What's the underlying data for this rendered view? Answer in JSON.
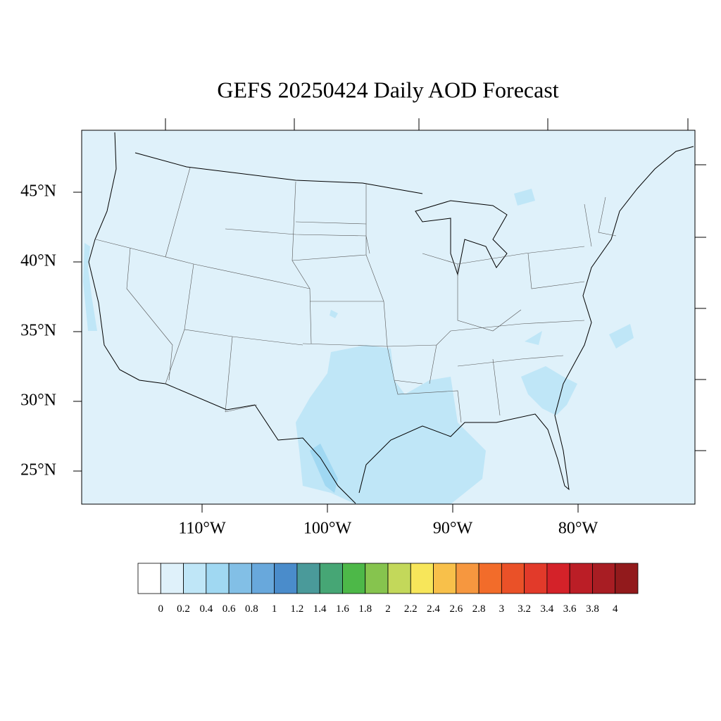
{
  "title": "GEFS 20250424 Daily AOD Forecast",
  "lat_labels": [
    "45°N",
    "40°N",
    "35°N",
    "30°N",
    "25°N"
  ],
  "lon_labels": [
    "110°W",
    "100°W",
    "90°W",
    "80°W"
  ],
  "colorbar": {
    "levels": [
      0,
      0.2,
      0.4,
      0.6,
      0.8,
      1,
      1.2,
      1.4,
      1.6,
      1.8,
      2,
      2.2,
      2.4,
      2.6,
      2.8,
      3,
      3.2,
      3.4,
      3.6,
      3.8,
      4
    ],
    "colors": [
      "#ffffff",
      "#dff1fa",
      "#bfe6f7",
      "#a0d8f2",
      "#82bfe6",
      "#68a8dc",
      "#4a8ccb",
      "#4a9a9a",
      "#46a675",
      "#4db848",
      "#86c44e",
      "#c3d85a",
      "#f7e65a",
      "#f8c04a",
      "#f6973f",
      "#f26c2a",
      "#ea5128",
      "#e23a2a",
      "#d42229",
      "#bb1e26",
      "#a81d23",
      "#921a1c"
    ]
  }
}
